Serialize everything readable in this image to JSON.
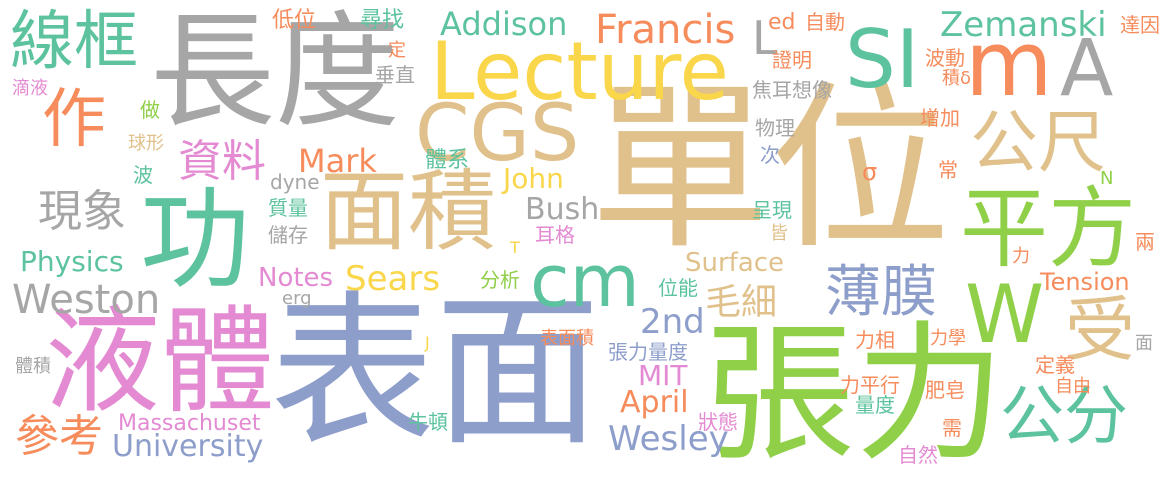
{
  "colors": {
    "gray": "#a6a6a6",
    "tan": "#e1c18b",
    "yellow": "#f9d64a",
    "green": "#8fd048",
    "teal": "#5cc39e",
    "blue": "#8d9ecb",
    "pink": "#e38ad2",
    "orange": "#f68c5c",
    "black": "#000000"
  },
  "words": [
    {
      "text": "單位",
      "color": "tan"
    },
    {
      "text": "表面",
      "color": "blue"
    },
    {
      "text": "張力",
      "color": "green"
    },
    {
      "text": "長度",
      "color": "gray"
    },
    {
      "text": "液體",
      "color": "pink"
    },
    {
      "text": "功",
      "color": "teal"
    },
    {
      "text": "Lecture",
      "color": "yellow"
    },
    {
      "text": "CGS",
      "color": "tan"
    },
    {
      "text": "面積",
      "color": "tan"
    },
    {
      "text": "平方",
      "color": "green"
    },
    {
      "text": "SI",
      "color": "teal"
    },
    {
      "text": "m",
      "color": "orange"
    },
    {
      "text": "A",
      "color": "gray"
    },
    {
      "text": "W",
      "color": "green"
    },
    {
      "text": "cm",
      "color": "teal"
    },
    {
      "text": "線框",
      "color": "teal"
    },
    {
      "text": "作",
      "color": "orange"
    },
    {
      "text": "公尺",
      "color": "tan"
    },
    {
      "text": "受",
      "color": "tan"
    },
    {
      "text": "公分",
      "color": "teal"
    },
    {
      "text": "薄膜",
      "color": "blue"
    },
    {
      "text": "Francis",
      "color": "orange"
    },
    {
      "text": "Zemanski",
      "color": "teal"
    },
    {
      "text": "Addison",
      "color": "teal"
    },
    {
      "text": "資料",
      "color": "pink"
    },
    {
      "text": "現象",
      "color": "gray"
    },
    {
      "text": "Sears",
      "color": "yellow"
    },
    {
      "text": "Mark",
      "color": "orange"
    },
    {
      "text": "John",
      "color": "yellow"
    },
    {
      "text": "Bush",
      "color": "gray"
    },
    {
      "text": "Weston",
      "color": "gray"
    },
    {
      "text": "Physics",
      "color": "teal"
    },
    {
      "text": "Notes",
      "color": "pink"
    },
    {
      "text": "Surface",
      "color": "tan"
    },
    {
      "text": "Tension",
      "color": "orange"
    },
    {
      "text": "毛細",
      "color": "tan"
    },
    {
      "text": "2nd",
      "color": "blue"
    },
    {
      "text": "MIT",
      "color": "pink"
    },
    {
      "text": "April",
      "color": "orange"
    },
    {
      "text": "Wesley",
      "color": "blue"
    },
    {
      "text": "University",
      "color": "blue"
    },
    {
      "text": "Massachuset",
      "color": "pink"
    },
    {
      "text": "參考",
      "color": "orange"
    },
    {
      "text": "L",
      "color": "gray"
    },
    {
      "text": "ed",
      "color": "orange"
    },
    {
      "text": "自動",
      "color": "orange"
    },
    {
      "text": "達因",
      "color": "orange"
    },
    {
      "text": "低位",
      "color": "orange"
    },
    {
      "text": "尋找",
      "color": "teal"
    },
    {
      "text": "定",
      "color": "orange"
    },
    {
      "text": "垂直",
      "color": "gray"
    },
    {
      "text": "證明",
      "color": "orange"
    },
    {
      "text": "波動",
      "color": "orange"
    },
    {
      "text": "積δ",
      "color": "orange"
    },
    {
      "text": "焦耳想像",
      "color": "gray"
    },
    {
      "text": "增加",
      "color": "orange"
    },
    {
      "text": "物理",
      "color": "gray"
    },
    {
      "text": "次",
      "color": "blue"
    },
    {
      "text": "體系",
      "color": "teal"
    },
    {
      "text": "σ",
      "color": "orange"
    },
    {
      "text": "常",
      "color": "orange"
    },
    {
      "text": "N",
      "color": "green"
    },
    {
      "text": "dyne",
      "color": "gray"
    },
    {
      "text": "質量",
      "color": "teal"
    },
    {
      "text": "儲存",
      "color": "gray"
    },
    {
      "text": "呈現",
      "color": "teal"
    },
    {
      "text": "皆",
      "color": "tan"
    },
    {
      "text": "耳格",
      "color": "pink"
    },
    {
      "text": "T",
      "color": "yellow"
    },
    {
      "text": "力",
      "color": "orange"
    },
    {
      "text": "兩",
      "color": "orange"
    },
    {
      "text": "分析",
      "color": "green"
    },
    {
      "text": "位能",
      "color": "teal"
    },
    {
      "text": "erg",
      "color": "gray"
    },
    {
      "text": "表面積",
      "color": "orange"
    },
    {
      "text": "張力量度",
      "color": "blue"
    },
    {
      "text": "力相",
      "color": "orange"
    },
    {
      "text": "力學",
      "color": "orange"
    },
    {
      "text": "面",
      "color": "gray"
    },
    {
      "text": "定義",
      "color": "orange"
    },
    {
      "text": "自由",
      "color": "orange"
    },
    {
      "text": "力平行",
      "color": "orange"
    },
    {
      "text": "肥皂",
      "color": "orange"
    },
    {
      "text": "量度",
      "color": "teal"
    },
    {
      "text": "狀態",
      "color": "pink"
    },
    {
      "text": "需",
      "color": "orange"
    },
    {
      "text": "自然",
      "color": "pink"
    },
    {
      "text": "牛頓",
      "color": "teal"
    },
    {
      "text": "J",
      "color": "yellow"
    },
    {
      "text": "體積",
      "color": "gray"
    },
    {
      "text": "滴液",
      "color": "pink"
    },
    {
      "text": "做",
      "color": "green"
    },
    {
      "text": "球形",
      "color": "tan"
    },
    {
      "text": "波",
      "color": "teal"
    }
  ]
}
